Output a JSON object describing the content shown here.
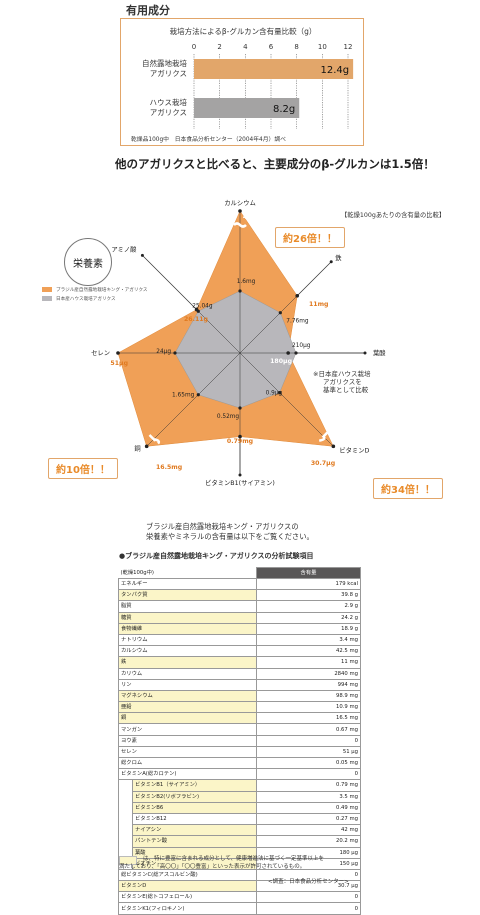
{
  "section_title": "有用成分",
  "bar_chart": {
    "title": "栽培方法によるβ-グルカン含有量比較（g）",
    "ticks": [
      0,
      2,
      4,
      6,
      8,
      10,
      12
    ],
    "xlim": [
      0,
      12
    ],
    "bars": [
      {
        "label_line1": "自然露地栽培",
        "label_line2": "アガリクス",
        "value": 12.4,
        "value_label": "12.4g",
        "color": "#e2a66a"
      },
      {
        "label_line1": "ハウス栽培",
        "label_line2": "アガリクス",
        "value": 8.2,
        "value_label": "8.2g",
        "color": "#a4a3a3"
      }
    ],
    "footnote": "乾燥品100g中　日本食品分析センター（2004年4月）調べ",
    "caption": "他のアガリクスと比べると、主要成分のβ-グルカンは1.5倍！"
  },
  "radar": {
    "badge": "栄養素",
    "corner_note": "【乾燥100gあたりの含有量の比較】",
    "legend": [
      {
        "label": "ブラジル産自然露地栽培キング・アガリクス",
        "color": "#f0a057"
      },
      {
        "label": "日本産ハウス栽培アガリクス",
        "color": "#b8b7bb"
      }
    ],
    "axes": [
      {
        "name": "カルシウム",
        "house": 1.6,
        "house_label": "1.6mg",
        "natural_label": "42.5mg",
        "ratio": 26.6
      },
      {
        "name": "鉄",
        "house": 7.76,
        "house_label": "7.76mg",
        "natural_label": "11mg",
        "ratio": 1.42
      },
      {
        "name": "葉酸",
        "house": 210,
        "house_label": "210μg",
        "natural_label": "180μg",
        "ratio": 0.86
      },
      {
        "name": "ビタミンD",
        "house": 0.9,
        "house_label": "0.9μg",
        "natural_label": "30.7μg",
        "ratio": 34.1
      },
      {
        "name": "ビタミンB1(サイアミン)",
        "house": 0.52,
        "house_label": "0.52mg",
        "natural_label": "0.79mg",
        "ratio": 1.52
      },
      {
        "name": "銅",
        "house": 1.65,
        "house_label": "1.65mg",
        "natural_label": "16.5mg",
        "ratio": 10
      },
      {
        "name": "セレン",
        "house": 24,
        "house_label": "24μg",
        "natural_label": "51μg",
        "ratio": 2.13
      },
      {
        "name": "アミノ酸",
        "house": 25.04,
        "house_label": "25.04g",
        "natural_label": "26.11g",
        "ratio": 1.04
      }
    ],
    "callouts": {
      "calcium": "約26倍！！",
      "copper": "約10倍！！",
      "vitd": "約34倍！！"
    },
    "side_note": [
      "※日本産ハウス栽培",
      "アガリクスを",
      "基準として比較"
    ]
  },
  "intro": [
    "ブラジル産自然露地栽培キング・アガリクスの",
    "栄養素やミネラルの含有量は以下をご覧ください。"
  ],
  "table": {
    "title": "●ブラジル産自然露地栽培キング・アガリクスの分析試験項目",
    "unit_label": "(乾燥100g中)",
    "value_header": "含有量",
    "rows": [
      {
        "name": "エネルギー",
        "value": "179 kcal",
        "hl": false,
        "sub": false
      },
      {
        "name": "タンパク質",
        "value": "39.8 g",
        "hl": true,
        "sub": false
      },
      {
        "name": "脂質",
        "value": "2.9 g",
        "hl": false,
        "sub": false
      },
      {
        "name": "糖質",
        "value": "24.2 g",
        "hl": true,
        "sub": false
      },
      {
        "name": "食物繊維",
        "value": "18.9 g",
        "hl": true,
        "sub": false
      },
      {
        "name": "ナトリウム",
        "value": "3.4 mg",
        "hl": false,
        "sub": false
      },
      {
        "name": "カルシウム",
        "value": "42.5 mg",
        "hl": false,
        "sub": false
      },
      {
        "name": "鉄",
        "value": "11 mg",
        "hl": true,
        "sub": false
      },
      {
        "name": "カリウム",
        "value": "2840 mg",
        "hl": false,
        "sub": false
      },
      {
        "name": "リン",
        "value": "994 mg",
        "hl": false,
        "sub": false
      },
      {
        "name": "マグネシウム",
        "value": "98.9 mg",
        "hl": true,
        "sub": false
      },
      {
        "name": "亜鉛",
        "value": "10.9 mg",
        "hl": true,
        "sub": false
      },
      {
        "name": "銅",
        "value": "16.5 mg",
        "hl": true,
        "sub": false
      },
      {
        "name": "マンガン",
        "value": "0.67 mg",
        "hl": false,
        "sub": false
      },
      {
        "name": "ヨウ素",
        "value": "0",
        "hl": false,
        "sub": false
      },
      {
        "name": "セレン",
        "value": "51 μg",
        "hl": false,
        "sub": false
      },
      {
        "name": "総クロム",
        "value": "0.05 mg",
        "hl": false,
        "sub": false
      },
      {
        "name": "ビタミンA(総カロテン)",
        "value": "0",
        "hl": false,
        "sub": false
      },
      {
        "name": "ビタミンB1（サイアミン）",
        "value": "0.79 mg",
        "hl": true,
        "sub": true
      },
      {
        "name": "ビタミンB2(リボフラビン)",
        "value": "3.5 mg",
        "hl": true,
        "sub": true
      },
      {
        "name": "ビタミンB6",
        "value": "0.49 mg",
        "hl": true,
        "sub": true
      },
      {
        "name": "ビタミンB12",
        "value": "0.27 mg",
        "hl": false,
        "sub": true
      },
      {
        "name": "ナイアシン",
        "value": "42 mg",
        "hl": true,
        "sub": true
      },
      {
        "name": "パントテン酸",
        "value": "20.2 mg",
        "hl": true,
        "sub": true
      },
      {
        "name": "葉酸",
        "value": "180 μg",
        "hl": true,
        "sub": true
      },
      {
        "name": "ビオチン",
        "value": "150 μg",
        "hl": true,
        "sub": true
      },
      {
        "name": "総ビタミンC(総アスコルビン酸)",
        "value": "0",
        "hl": false,
        "sub": false
      },
      {
        "name": "ビタミンD",
        "value": "30.7 μg",
        "hl": true,
        "sub": false
      },
      {
        "name": "ビタミンE(総トコフェロール)",
        "value": "0",
        "hl": false,
        "sub": false
      },
      {
        "name": "ビタミンK1(フィロキノン)",
        "value": "0",
        "hl": false,
        "sub": false
      }
    ],
    "footnote": [
      "は、特に豊富に含まれる成分として、健康増進法に基づく一定基準以上を",
      "満たしており、「高〇〇」「〇〇豊富」といった表示が許可されているもの。"
    ],
    "source": "<調査：日本食品分析センター>"
  },
  "chart_data": [
    {
      "type": "bar",
      "title": "栽培方法によるβ-グルカン含有量比較（g）",
      "categories": [
        "自然露地栽培アガリクス",
        "ハウス栽培アガリクス"
      ],
      "values": [
        12.4,
        8.2
      ],
      "xlim": [
        0,
        12
      ],
      "orientation": "horizontal"
    },
    {
      "type": "radar",
      "categories": [
        "カルシウム",
        "鉄",
        "葉酸",
        "ビタミンD",
        "ビタミンB1(サイアミン)",
        "銅",
        "セレン",
        "アミノ酸"
      ],
      "series": [
        {
          "name": "ブラジル産自然露地栽培キング・アガリクス",
          "values": [
            42.5,
            11,
            180,
            30.7,
            0.79,
            16.5,
            51,
            26.11
          ]
        },
        {
          "name": "日本産ハウス栽培アガリクス",
          "values": [
            1.6,
            7.76,
            210,
            0.9,
            0.52,
            1.65,
            24,
            25.04
          ]
        }
      ]
    }
  ]
}
